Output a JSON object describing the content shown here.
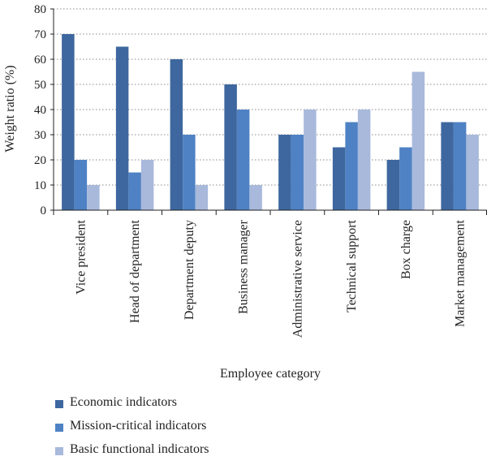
{
  "chart_data": {
    "type": "bar",
    "title": "",
    "xlabel": "Employee category",
    "ylabel": "Weight ratio (%)",
    "ylim": [
      0,
      80
    ],
    "yticks": [
      0,
      10,
      20,
      30,
      40,
      50,
      60,
      70,
      80
    ],
    "grid": "horizontal dotted",
    "legend_position": "bottom-left",
    "categories": [
      "Vice president",
      "Head of department",
      "Department deputy",
      "Business manager",
      "Administrative service",
      "Technical support",
      "Box charge",
      "Market management"
    ],
    "series": [
      {
        "name": "Economic indicators",
        "color": "#3e679f",
        "values": [
          70,
          65,
          60,
          50,
          30,
          25,
          20,
          35
        ]
      },
      {
        "name": "Mission-critical indicators",
        "color": "#4f82c4",
        "values": [
          20,
          15,
          30,
          40,
          30,
          35,
          25,
          35
        ]
      },
      {
        "name": "Basic functional indicators",
        "color": "#a8b9dc",
        "values": [
          10,
          20,
          10,
          10,
          40,
          40,
          55,
          30
        ]
      }
    ]
  }
}
